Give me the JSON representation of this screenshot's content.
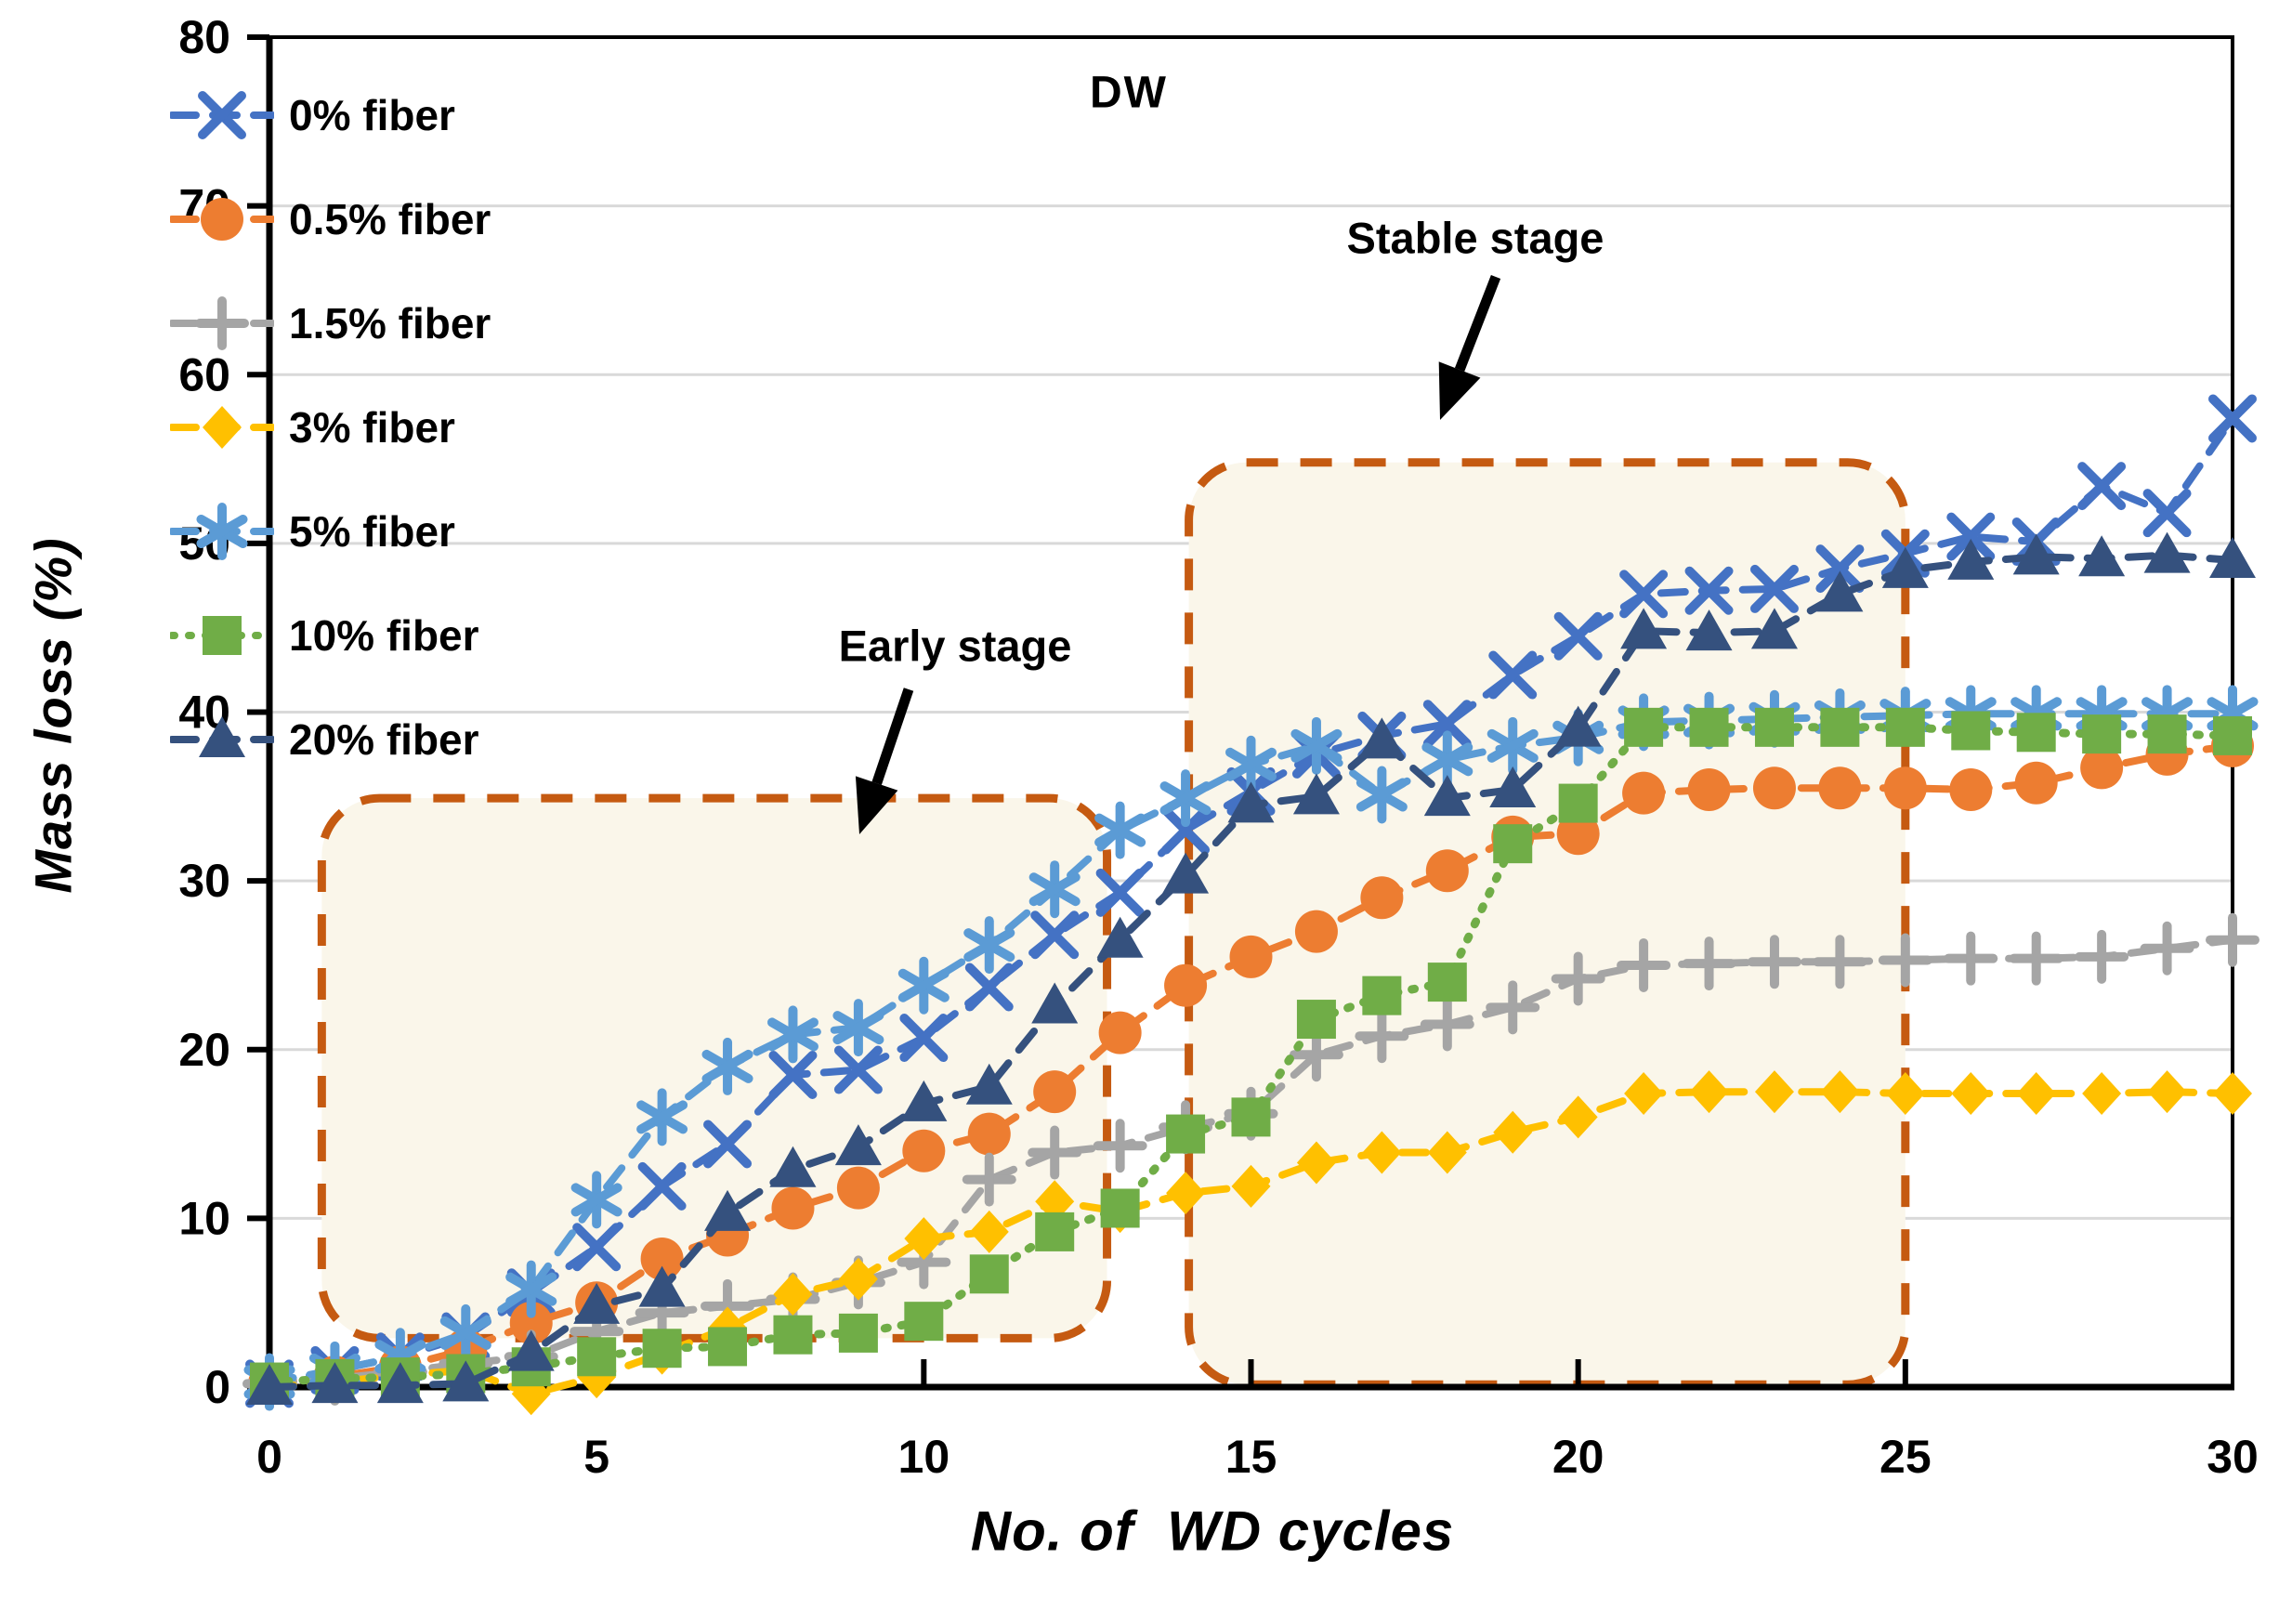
{
  "figure": {
    "inside_label": "DW"
  },
  "axes": {
    "x": {
      "label": "No. of  WD cycles",
      "min": 0,
      "max": 30,
      "ticks": [
        0,
        5,
        10,
        15,
        20,
        25,
        30
      ]
    },
    "y": {
      "label": "Mass loss (%)",
      "min": 0,
      "max": 80,
      "ticks": [
        0,
        10,
        20,
        30,
        40,
        50,
        60,
        70,
        80
      ]
    }
  },
  "annotations": {
    "early": {
      "label": "Early stage"
    },
    "stable": {
      "label": "Stable stage"
    }
  },
  "colors": {
    "blue_0pct": "#4472C4",
    "orange_05pct": "#ED7D31",
    "gray_15pct": "#A5A5A5",
    "gold_3pct": "#FFC000",
    "lightblue_5pct": "#5B9BD5",
    "green_10pct": "#70AD47",
    "navy_20pct": "#35517E",
    "box_border": "#C55A11",
    "box_fill": "#FAF6EA",
    "gridline": "#D9D9D9"
  },
  "chart_data": {
    "type": "line",
    "title": "DW",
    "xlabel": "No. of  WD cycles",
    "ylabel": "Mass loss (%)",
    "xlim": [
      0,
      30
    ],
    "ylim": [
      0,
      80
    ],
    "grid": "horizontal",
    "legend_position": "upper-left-inside",
    "x": [
      0,
      1,
      2,
      3,
      4,
      5,
      6,
      7,
      8,
      9,
      10,
      11,
      12,
      13,
      14,
      15,
      16,
      17,
      18,
      19,
      20,
      21,
      22,
      23,
      24,
      25,
      26,
      27,
      28,
      29,
      30
    ],
    "series": [
      {
        "name": "0% fiber",
        "color": "#4472C4",
        "marker": "x",
        "line": "dashed",
        "values": [
          0.2,
          1.0,
          1.8,
          3.0,
          5.6,
          8.3,
          11.9,
          14.4,
          18.5,
          18.8,
          20.7,
          23.7,
          26.8,
          29.3,
          33.0,
          35.3,
          37.5,
          38.6,
          39.3,
          42.2,
          44.5,
          47.0,
          47.2,
          47.3,
          48.5,
          49.4,
          50.4,
          50.1,
          53.4,
          51.8,
          57.4
        ]
      },
      {
        "name": "0.5% fiber",
        "color": "#ED7D31",
        "marker": "circle",
        "line": "dashed",
        "values": [
          0.2,
          0.6,
          1.2,
          2.2,
          3.8,
          5.0,
          7.6,
          9.0,
          10.6,
          11.8,
          14.0,
          15.0,
          17.5,
          21.0,
          23.8,
          25.5,
          27.0,
          29.0,
          30.6,
          32.6,
          32.8,
          35.2,
          35.4,
          35.5,
          35.5,
          35.5,
          35.4,
          35.8,
          36.7,
          37.5,
          38.0
        ]
      },
      {
        "name": "1.5% fiber",
        "color": "#A5A5A5",
        "marker": "plus",
        "line": "dashed",
        "values": [
          0.2,
          0.5,
          0.9,
          1.4,
          1.8,
          3.3,
          4.4,
          4.8,
          5.2,
          6.2,
          7.4,
          12.3,
          13.9,
          14.3,
          15.4,
          16.2,
          19.7,
          20.8,
          21.5,
          22.5,
          24.2,
          25.0,
          25.1,
          25.2,
          25.2,
          25.3,
          25.4,
          25.4,
          25.5,
          26.0,
          26.5
        ]
      },
      {
        "name": "3% fiber",
        "color": "#FFC000",
        "marker": "diamond",
        "line": "dashed",
        "values": [
          0.0,
          0.3,
          0.7,
          1.0,
          -0.4,
          0.6,
          2.0,
          3.5,
          5.5,
          6.4,
          8.8,
          9.2,
          11.0,
          10.4,
          11.5,
          11.9,
          13.3,
          13.9,
          13.9,
          15.1,
          16.0,
          17.4,
          17.5,
          17.5,
          17.5,
          17.4,
          17.4,
          17.4,
          17.4,
          17.5,
          17.4
        ]
      },
      {
        "name": "5% fiber",
        "color": "#5B9BD5",
        "marker": "asterisk",
        "line": "dashed",
        "values": [
          0.3,
          1.0,
          1.8,
          3.2,
          5.8,
          11.1,
          16.0,
          19.0,
          20.9,
          21.3,
          23.8,
          26.2,
          29.5,
          33.0,
          34.9,
          36.9,
          38.0,
          35.1,
          37.2,
          38.0,
          38.5,
          39.4,
          39.5,
          39.6,
          39.7,
          39.8,
          39.9,
          39.9,
          39.9,
          39.9,
          39.9
        ]
      },
      {
        "name": "10% fiber",
        "color": "#70AD47",
        "marker": "square",
        "line": "dotted",
        "values": [
          0.3,
          0.5,
          0.6,
          0.8,
          1.2,
          1.8,
          2.3,
          2.4,
          3.1,
          3.2,
          3.9,
          6.7,
          9.2,
          10.6,
          15.0,
          16.0,
          21.8,
          23.2,
          24.0,
          32.2,
          34.6,
          39.1,
          39.1,
          39.1,
          39.1,
          39.1,
          38.9,
          38.8,
          38.7,
          38.7,
          38.6
        ]
      },
      {
        "name": "20% fiber",
        "color": "#35517E",
        "marker": "triangle",
        "line": "dashed",
        "values": [
          0.0,
          0.1,
          0.1,
          0.2,
          2.0,
          4.8,
          5.8,
          10.3,
          12.9,
          14.2,
          16.8,
          17.8,
          22.6,
          26.5,
          30.3,
          34.5,
          35.0,
          38.3,
          34.9,
          35.4,
          39.0,
          44.8,
          44.7,
          44.8,
          47.0,
          48.4,
          48.9,
          49.2,
          49.1,
          49.3,
          49.0
        ]
      }
    ],
    "boxes": [
      {
        "label": "Early stage",
        "x0": 0.8,
        "x1": 12.8,
        "y0": 2.9,
        "y1": 34.9
      },
      {
        "label": "Stable stage",
        "x0": 14.05,
        "x1": 25.0,
        "y0": 0.15,
        "y1": 54.8
      }
    ]
  },
  "legend": {
    "items": [
      {
        "label": "0% fiber"
      },
      {
        "label": "0.5% fiber"
      },
      {
        "label": "1.5% fiber"
      },
      {
        "label": "3% fiber"
      },
      {
        "label": "5% fiber"
      },
      {
        "label": "10% fiber"
      },
      {
        "label": "20% fiber"
      }
    ]
  }
}
